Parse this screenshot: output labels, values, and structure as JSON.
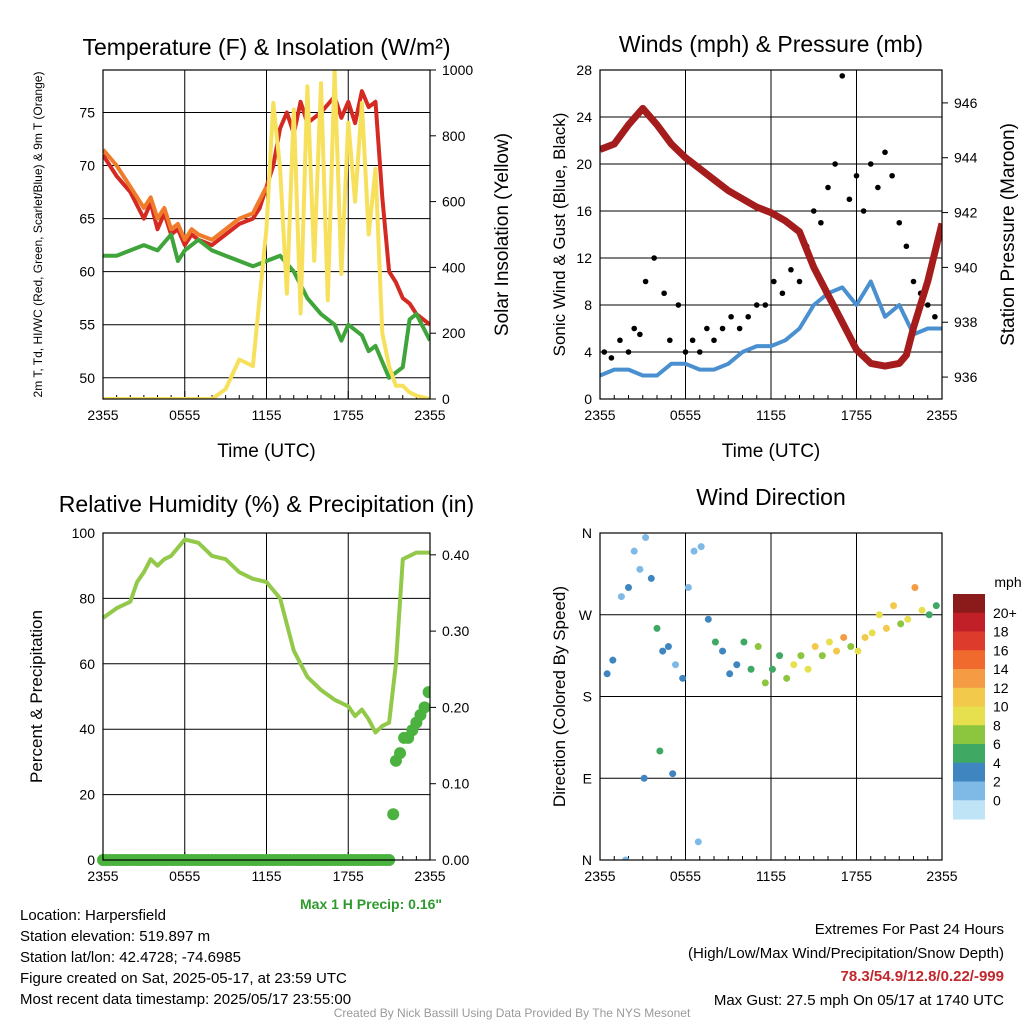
{
  "colors": {
    "temp": "#d42a22",
    "heat_index": "#f07b2a",
    "dewpoint": "#3fa43a",
    "solar": "#f6e05c",
    "wind": "#4a90d0",
    "gust": "#000000",
    "pressure": "#a51c1c",
    "rh": "#93c94a",
    "precip": "#4cb23f"
  },
  "info": {
    "location": "Location: Harpersfield",
    "elevation": "Station elevation: 519.897 m",
    "latlon": "Station lat/lon: 42.4728; -74.6985",
    "created": "Figure created on Sat, 2025-05-17, at 23:59 UTC",
    "recent": "Most recent data timestamp: 2025/05/17 23:55:00"
  },
  "extremes": {
    "title": "Extremes For Past 24 Hours",
    "subtitle": "(High/Low/Max Wind/Precipitation/Snow Depth)",
    "values": "78.3/54.9/12.8/0.22/-999",
    "max_gust": "Max Gust: 27.5 mph On 05/17 at 1740 UTC"
  },
  "credit": "Created By Nick Bassill Using Data Provided By The NYS Mesonet",
  "max_precip": "Max 1 H Precip: 0.16\"",
  "chart_data": [
    {
      "type": "line",
      "title": "Temperature (F) & Insolation (W/m²)",
      "xlabel": "Time (UTC)",
      "ylabel": "2m T, Td, HI/WC (Red, Green, Scarlet/Blue) & 9m T (Orange)",
      "ylabel_right": "Solar Insolation (Yellow)",
      "x_ticks": [
        "2355",
        "0555",
        "1155",
        "1755",
        "2355"
      ],
      "xlim": [
        0,
        24
      ],
      "ylim": [
        48,
        79
      ],
      "y_ticks": [
        50,
        55,
        60,
        65,
        70,
        75
      ],
      "ylim_right": [
        0,
        1000
      ],
      "y_ticks_right": [
        0,
        200,
        400,
        600,
        800,
        1000
      ],
      "series": [
        {
          "name": "2m T",
          "axis": "left",
          "color": "temp",
          "x": [
            0,
            1,
            2,
            3,
            3.5,
            4,
            4.5,
            5,
            5.5,
            6,
            6.5,
            7,
            8,
            9,
            10,
            11,
            11.5,
            12,
            12.5,
            13,
            13.5,
            14,
            14.5,
            15,
            16,
            17,
            17.5,
            18,
            18.5,
            19,
            19.5,
            20,
            20.5,
            21,
            21.5,
            22,
            22.5,
            23,
            24
          ],
          "y": [
            71,
            69,
            67.5,
            65,
            66.5,
            64,
            65.5,
            63.5,
            64,
            62.5,
            63.5,
            63,
            62.5,
            63.5,
            64.5,
            65,
            66,
            68,
            70,
            73.5,
            75,
            73,
            76,
            74,
            75,
            76.5,
            74.5,
            76,
            74,
            77,
            75.5,
            76,
            67,
            60,
            59,
            57.5,
            57,
            56,
            55
          ]
        },
        {
          "name": "2m Td",
          "axis": "left",
          "color": "dewpoint",
          "x": [
            0,
            1,
            2,
            3,
            4,
            5,
            5.5,
            6,
            6.5,
            7,
            8,
            9,
            10,
            11,
            12,
            13,
            14,
            15,
            16,
            17,
            17.5,
            18,
            19,
            19.5,
            20,
            21,
            22,
            22.5,
            23,
            24
          ],
          "y": [
            61.5,
            61.5,
            62,
            62.5,
            62,
            63.5,
            61,
            62,
            62.5,
            63,
            62,
            61.5,
            61,
            60.5,
            61,
            61.5,
            60,
            57.5,
            56,
            55,
            53.5,
            55,
            54,
            52.5,
            53,
            50,
            51,
            55.5,
            56,
            53.5
          ]
        },
        {
          "name": "9m T",
          "axis": "left",
          "color": "heat_index",
          "x": [
            0,
            1,
            2,
            3,
            3.5,
            4,
            4.5,
            5,
            5.5,
            6,
            6.5,
            7,
            8,
            9,
            10,
            11,
            12
          ],
          "y": [
            71.5,
            70,
            68,
            66,
            67,
            65,
            66,
            64,
            64.5,
            63,
            64,
            63.5,
            63,
            64,
            65,
            65.5,
            68
          ]
        },
        {
          "name": "Solar",
          "axis": "right",
          "color": "solar",
          "x": [
            0,
            6,
            7,
            8,
            9,
            10,
            11,
            12,
            12.5,
            13,
            13.5,
            14,
            14.5,
            15,
            15.5,
            16,
            16.5,
            17,
            17.5,
            18,
            18.5,
            19,
            19.5,
            20,
            20.5,
            21,
            21.5,
            22,
            22.5,
            23,
            24
          ],
          "y": [
            0,
            0,
            0,
            0,
            30,
            120,
            100,
            520,
            900,
            700,
            320,
            880,
            260,
            950,
            420,
            960,
            300,
            1000,
            380,
            840,
            600,
            900,
            500,
            700,
            200,
            100,
            40,
            40,
            20,
            10,
            0
          ]
        }
      ]
    },
    {
      "type": "line",
      "title": "Winds (mph) & Pressure (mb)",
      "xlabel": "Time (UTC)",
      "ylabel": "Sonic Wind & Gust (Blue, Black)",
      "ylabel_right": "Station Pressure (Maroon)",
      "x_ticks": [
        "2355",
        "0555",
        "1155",
        "1755",
        "2355"
      ],
      "xlim": [
        0,
        24
      ],
      "ylim": [
        0,
        28
      ],
      "y_ticks": [
        0,
        4,
        8,
        12,
        16,
        20,
        24,
        28
      ],
      "ylim_right": [
        935.2,
        947.2
      ],
      "y_ticks_right": [
        936,
        938,
        940,
        942,
        944,
        946
      ],
      "series": [
        {
          "name": "Sonic Wind",
          "axis": "left",
          "color": "wind",
          "x": [
            0,
            1,
            2,
            3,
            4,
            5,
            6,
            7,
            8,
            9,
            10,
            11,
            12,
            13,
            14,
            15,
            16,
            17,
            18,
            19,
            20,
            21,
            22,
            23,
            24
          ],
          "y": [
            2,
            2.5,
            2.5,
            2,
            2,
            3,
            3,
            2.5,
            2.5,
            3,
            4,
            4.5,
            4.5,
            5,
            6,
            8,
            9,
            9.5,
            8,
            10,
            7,
            8,
            5.5,
            6,
            6
          ]
        },
        {
          "name": "Gust",
          "axis": "left",
          "color": "gust",
          "mode": "points",
          "x": [
            0.3,
            0.8,
            1.4,
            2,
            2.4,
            2.8,
            3.2,
            3.8,
            4.5,
            4.9,
            5.5,
            6,
            6.5,
            7,
            7.5,
            8,
            8.6,
            9.2,
            9.8,
            10.4,
            11,
            11.6,
            12.2,
            12.8,
            13.4,
            14,
            14.5,
            15,
            15.5,
            16,
            16.5,
            17,
            17.5,
            18,
            18.5,
            19,
            19.5,
            20,
            20.5,
            21,
            21.5,
            22,
            22.5,
            23,
            23.5
          ],
          "y": [
            4,
            3.5,
            5,
            4,
            6,
            5.5,
            10,
            12,
            9,
            5,
            8,
            4,
            5,
            4,
            6,
            5,
            6,
            7,
            6,
            7,
            8,
            8,
            10,
            9,
            11,
            10,
            13,
            16,
            15,
            18,
            20,
            27.5,
            17,
            19,
            16,
            20,
            18,
            21,
            19,
            15,
            13,
            10,
            9,
            8,
            7
          ]
        },
        {
          "name": "Station Pressure",
          "axis": "right",
          "color": "pressure",
          "x": [
            0,
            1,
            2,
            3,
            4,
            5,
            6,
            7,
            8,
            9,
            10,
            11,
            12,
            13,
            14,
            15,
            16,
            17,
            18,
            19,
            20,
            21,
            21.5,
            22,
            23,
            24
          ],
          "y": [
            944.3,
            944.5,
            945.2,
            945.8,
            945.2,
            944.5,
            944,
            943.6,
            943.2,
            942.8,
            942.5,
            942.2,
            942,
            941.7,
            941.3,
            940,
            939,
            938,
            937,
            936.5,
            936.4,
            936.5,
            936.8,
            937.8,
            939.5,
            941.6
          ]
        }
      ]
    },
    {
      "type": "line",
      "title": "Relative Humidity (%) & Precipitation (in)",
      "xlabel": "",
      "ylabel": "Percent & Precipitation",
      "x_ticks": [
        "2355",
        "0555",
        "1155",
        "1755",
        "2355"
      ],
      "xlim": [
        0,
        24
      ],
      "ylim": [
        0,
        100
      ],
      "y_ticks": [
        0,
        20,
        40,
        60,
        80,
        100
      ],
      "ylim_right": [
        0,
        0.4286
      ],
      "y_ticks_right": [
        "0.00",
        "0.10",
        "0.20",
        "0.30",
        "0.40"
      ],
      "series": [
        {
          "name": "RH",
          "axis": "left",
          "color": "rh",
          "x": [
            0,
            1,
            2,
            2.5,
            3,
            3.5,
            4,
            4.5,
            5,
            6,
            7,
            8,
            9,
            10,
            11,
            12,
            13,
            14,
            15,
            16,
            17,
            18,
            18.5,
            19,
            19.5,
            20,
            20.5,
            21,
            21.5,
            22,
            23,
            24
          ],
          "y": [
            74,
            77,
            79,
            85,
            88,
            92,
            90,
            92,
            93,
            98,
            97,
            93,
            92,
            88,
            86,
            85,
            80,
            64,
            56,
            52,
            49,
            47,
            44,
            46,
            43,
            39,
            41,
            42,
            60,
            92,
            94,
            94
          ]
        },
        {
          "name": "Precipitation",
          "axis": "right",
          "color": "precip",
          "mode": "points",
          "x": [
            21.3,
            21.5,
            21.8,
            22.1,
            22.4,
            22.7,
            23,
            23.3,
            23.6,
            23.9
          ],
          "y": [
            0.06,
            0.13,
            0.14,
            0.16,
            0.16,
            0.17,
            0.18,
            0.19,
            0.2,
            0.22
          ]
        }
      ]
    },
    {
      "type": "scatter",
      "title": "Wind Direction",
      "ylabel": "Direction (Colored By Speed)",
      "x_ticks": [
        "2355",
        "0555",
        "1155",
        "1755",
        "2355"
      ],
      "xlim": [
        0,
        24
      ],
      "y_ticks": [
        "N",
        "E",
        "S",
        "W",
        "N"
      ],
      "ylim": [
        0,
        360
      ],
      "colorbar": {
        "label": "mph",
        "ticks": [
          "20+",
          "18",
          "16",
          "14",
          "12",
          "10",
          "8",
          "6",
          "4",
          "2",
          "0"
        ],
        "colors": [
          "#8b1a1a",
          "#c22028",
          "#dd3b2b",
          "#f0692d",
          "#f59b43",
          "#f3c94b",
          "#e7e04e",
          "#8cc63f",
          "#3fa862",
          "#3f86c0",
          "#7fb9e6",
          "#bfe4f6"
        ]
      },
      "points": {
        "x": [
          0.5,
          0.9,
          1.5,
          2,
          2.4,
          2.8,
          3.2,
          3.6,
          4,
          4.4,
          4.8,
          5.3,
          5.8,
          6.2,
          6.6,
          7.1,
          7.6,
          8.1,
          8.6,
          9.1,
          9.6,
          10.1,
          10.6,
          11.1,
          11.6,
          12.1,
          12.6,
          13.1,
          13.6,
          14.1,
          14.6,
          15.1,
          15.6,
          16.1,
          16.6,
          17.1,
          17.6,
          18.1,
          18.6,
          19.1,
          19.6,
          20.1,
          20.6,
          21.1,
          21.6,
          22.1,
          22.6,
          23.1,
          23.6,
          1.8,
          3.1,
          5.1,
          6.9,
          4.2
        ],
        "y": [
          205,
          220,
          290,
          300,
          340,
          320,
          355,
          310,
          255,
          230,
          235,
          215,
          200,
          300,
          340,
          345,
          265,
          240,
          230,
          205,
          215,
          240,
          210,
          235,
          195,
          210,
          225,
          200,
          215,
          225,
          210,
          235,
          225,
          240,
          230,
          245,
          235,
          230,
          245,
          250,
          270,
          255,
          280,
          260,
          265,
          300,
          275,
          270,
          280,
          0,
          90,
          95,
          20,
          120
        ],
        "speed": [
          3,
          2,
          1,
          2,
          1,
          0,
          1,
          3,
          4,
          3,
          2,
          1,
          2,
          1,
          0,
          1,
          3,
          4,
          3,
          2,
          3,
          4,
          5,
          6,
          7,
          5,
          4,
          6,
          8,
          7,
          9,
          10,
          6,
          8,
          11,
          12,
          7,
          9,
          10,
          8,
          9,
          11,
          10,
          7,
          8,
          12,
          9,
          5,
          4,
          0,
          2,
          3,
          1,
          4
        ]
      }
    }
  ]
}
